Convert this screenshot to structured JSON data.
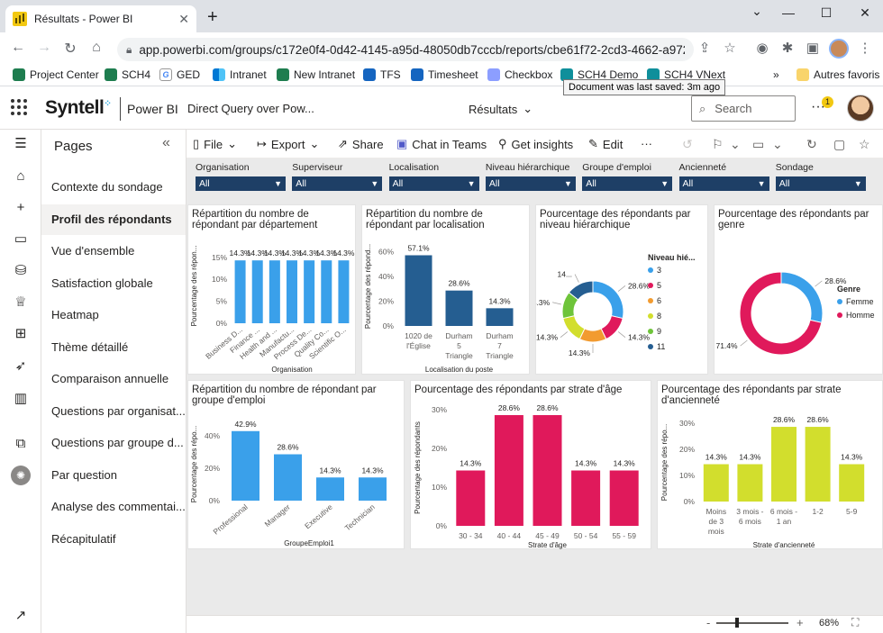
{
  "browser": {
    "tab_title": "Résultats - Power BI",
    "url": "app.powerbi.com/groups/c172e0f4-0d42-4145-a95d-48050db7cccb/reports/cbe61f72-2cd3-4662-a972-7a50...",
    "bookmarks": [
      "Project Center",
      "SCH4",
      "GED",
      "Intranet",
      "New Intranet",
      "TFS",
      "Timesheet",
      "Checkbox",
      "SCH4 Demo",
      "SCH4 VNext"
    ],
    "other_bookmarks": "Autres favoris",
    "tooltip": "Document was last saved: 3m ago"
  },
  "header": {
    "brand": "Syntell",
    "product": "Power BI",
    "report_name": "Direct Query over Pow...",
    "page_selector": "Résultats",
    "search_placeholder": "Search",
    "notification_count": "1"
  },
  "pages_pane": {
    "title": "Pages",
    "items": [
      "Contexte du sondage",
      "Profil des répondants",
      "Vue d'ensemble",
      "Satisfaction globale",
      "Heatmap",
      "Thème détaillé",
      "Comparaison annuelle",
      "Questions par organisat...",
      "Questions par groupe d...",
      "Par question",
      "Analyse des commentai...",
      "Récapitulatif"
    ],
    "active_index": 1
  },
  "toolbar": {
    "file": "File",
    "export": "Export",
    "share": "Share",
    "chat": "Chat in Teams",
    "insights": "Get insights",
    "edit": "Edit"
  },
  "slicers": [
    {
      "label": "Organisation",
      "value": "All"
    },
    {
      "label": "Superviseur",
      "value": "All"
    },
    {
      "label": "Localisation",
      "value": "All"
    },
    {
      "label": "Niveau hiérarchique",
      "value": "All"
    },
    {
      "label": "Groupe d'emploi",
      "value": "All"
    },
    {
      "label": "Ancienneté",
      "value": "All"
    },
    {
      "label": "Sondage",
      "value": "All"
    }
  ],
  "status": {
    "zoom": "68%"
  },
  "colors": {
    "bar_blue": "#3aa0ea",
    "bar_navy": "#255e91",
    "bar_pink": "#e0195b",
    "bar_lime": "#d2de2d",
    "slicer": "#1e3f66"
  },
  "chart_data": [
    {
      "type": "bar",
      "title": "Répartition du nombre de répondant par département",
      "xlabel": "Organisation",
      "ylabel": "Pourcentage des répon...",
      "categories": [
        "Business D...",
        "Finance ...",
        "Health and ...",
        "Manufactu...",
        "Process De...",
        "Quality Co...",
        "Scientific O..."
      ],
      "values": [
        14.3,
        14.3,
        14.3,
        14.3,
        14.3,
        14.3,
        14.3
      ],
      "data_labels": [
        "14.3%",
        "14.3%",
        "14.3%",
        "14.3%",
        "14.3%",
        "14.3%",
        "14.3%"
      ],
      "yticks": [
        "0%",
        "5%",
        "10%",
        "15%"
      ],
      "ylim": [
        0,
        17
      ]
    },
    {
      "type": "bar",
      "title": "Répartition du nombre de répondant par localisation",
      "xlabel": "Localisation du poste",
      "ylabel": "Pourcentage des répond...",
      "categories": [
        "1020 de l'Église",
        "Durham 5 Triangle",
        "Durham 7 Triangle"
      ],
      "values": [
        57.1,
        28.6,
        14.3
      ],
      "data_labels": [
        "57.1%",
        "28.6%",
        "14.3%"
      ],
      "yticks": [
        "0%",
        "20%",
        "40%",
        "60%"
      ],
      "ylim": [
        0,
        64
      ]
    },
    {
      "type": "pie",
      "title": "Pourcentage des répondants par niveau hiérarchique",
      "legend_title": "Niveau hié...",
      "labels": [
        "3",
        "5",
        "6",
        "8",
        "9",
        "11"
      ],
      "values": [
        28.6,
        14.3,
        14.3,
        14.3,
        14.3,
        14.3
      ],
      "data_labels": [
        "28.6%",
        "14.3%",
        "14.3%",
        "14.3%",
        "14.3%",
        "14..."
      ],
      "colors": [
        "#3aa0ea",
        "#e0195b",
        "#f29b30",
        "#d2de2d",
        "#6ec43a",
        "#255e91"
      ]
    },
    {
      "type": "pie",
      "title": "Pourcentage des répondants par genre",
      "legend_title": "Genre",
      "labels": [
        "Femme",
        "Homme"
      ],
      "values": [
        28.6,
        71.4
      ],
      "data_labels": [
        "28.6%",
        "71.4%"
      ],
      "colors": [
        "#3aa0ea",
        "#e0195b"
      ]
    },
    {
      "type": "bar",
      "title": "Répartition du nombre de répondant par groupe d'emploi",
      "xlabel": "GroupeEmploi1",
      "ylabel": "Pourcentage des répo...",
      "categories": [
        "Professional",
        "Manager",
        "Executive",
        "Technician"
      ],
      "values": [
        42.9,
        28.6,
        14.3,
        14.3
      ],
      "data_labels": [
        "42.9%",
        "28.6%",
        "14.3%",
        "14.3%"
      ],
      "yticks": [
        "0%",
        "20%",
        "40%"
      ],
      "ylim": [
        0,
        45
      ]
    },
    {
      "type": "bar",
      "title": "Pourcentage des répondants par strate d'âge",
      "xlabel": "Strate d'âge",
      "ylabel": "Pourcentage des répondants",
      "categories": [
        "30 - 34",
        "40 - 44",
        "45 - 49",
        "50 - 54",
        "55 - 59"
      ],
      "values": [
        14.3,
        28.6,
        28.6,
        14.3,
        14.3
      ],
      "data_labels": [
        "14.3%",
        "28.6%",
        "28.6%",
        "14.3%",
        "14.3%"
      ],
      "yticks": [
        "0%",
        "10%",
        "20%",
        "30%"
      ],
      "ylim": [
        0,
        30
      ]
    },
    {
      "type": "bar",
      "title": "Pourcentage des répondants par strate d'ancienneté",
      "xlabel": "Strate d'ancienneté",
      "ylabel": "Pourcentage des répo...",
      "categories": [
        "Moins de 3 mois",
        "3 mois - 6 mois",
        "6 mois - 1 an",
        "1-2",
        "5-9"
      ],
      "values": [
        14.3,
        14.3,
        28.6,
        28.6,
        14.3
      ],
      "data_labels": [
        "14.3%",
        "14.3%",
        "28.6%",
        "28.6%",
        "14.3%"
      ],
      "yticks": [
        "0%",
        "10%",
        "20%",
        "30%"
      ],
      "ylim": [
        0,
        30
      ]
    }
  ]
}
